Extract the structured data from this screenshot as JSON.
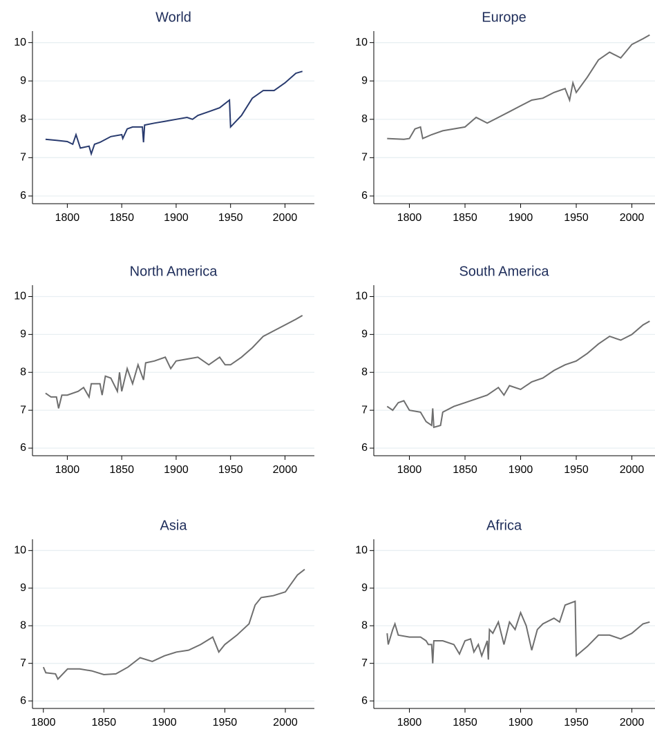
{
  "chart_data": [
    {
      "type": "line",
      "title": "World",
      "color": "#283a6e",
      "grid": true,
      "xlim": [
        1768,
        2027
      ],
      "ylim": [
        5.8,
        10.3
      ],
      "xticks": [
        1800,
        1850,
        1900,
        1950,
        2000
      ],
      "yticks": [
        6,
        7,
        8,
        9,
        10
      ],
      "x": [
        1780,
        1790,
        1800,
        1805,
        1808,
        1812,
        1820,
        1822,
        1825,
        1830,
        1840,
        1850,
        1851,
        1855,
        1860,
        1869,
        1870,
        1871,
        1880,
        1890,
        1900,
        1910,
        1915,
        1920,
        1930,
        1940,
        1949,
        1950,
        1960,
        1970,
        1980,
        1990,
        2000,
        2010,
        2016
      ],
      "values": [
        7.48,
        7.45,
        7.42,
        7.35,
        7.6,
        7.25,
        7.3,
        7.1,
        7.35,
        7.4,
        7.55,
        7.6,
        7.5,
        7.75,
        7.8,
        7.8,
        7.4,
        7.85,
        7.9,
        7.95,
        8.0,
        8.05,
        8.0,
        8.1,
        8.2,
        8.3,
        8.5,
        7.8,
        8.1,
        8.55,
        8.75,
        8.75,
        8.95,
        9.2,
        9.25
      ]
    },
    {
      "type": "line",
      "title": "Europe",
      "color": "#6e6e6e",
      "grid": true,
      "xlim": [
        1768,
        2027
      ],
      "ylim": [
        5.8,
        10.3
      ],
      "xticks": [
        1800,
        1850,
        1900,
        1950,
        2000
      ],
      "yticks": [
        6,
        7,
        8,
        9,
        10
      ],
      "x": [
        1780,
        1795,
        1800,
        1805,
        1810,
        1812,
        1820,
        1830,
        1850,
        1860,
        1870,
        1880,
        1890,
        1900,
        1910,
        1920,
        1930,
        1940,
        1944,
        1947,
        1950,
        1960,
        1970,
        1980,
        1990,
        2000,
        2010,
        2016
      ],
      "values": [
        7.5,
        7.48,
        7.5,
        7.75,
        7.8,
        7.5,
        7.6,
        7.7,
        7.8,
        8.05,
        7.9,
        8.05,
        8.2,
        8.35,
        8.5,
        8.55,
        8.7,
        8.8,
        8.5,
        8.95,
        8.7,
        9.1,
        9.55,
        9.75,
        9.6,
        9.95,
        10.1,
        10.2
      ]
    },
    {
      "type": "line",
      "title": "North America",
      "color": "#6e6e6e",
      "grid": true,
      "xlim": [
        1768,
        2027
      ],
      "ylim": [
        5.8,
        10.3
      ],
      "xticks": [
        1800,
        1850,
        1900,
        1950,
        2000
      ],
      "yticks": [
        6,
        7,
        8,
        9,
        10
      ],
      "x": [
        1780,
        1785,
        1790,
        1792,
        1795,
        1800,
        1810,
        1815,
        1820,
        1822,
        1830,
        1832,
        1835,
        1840,
        1846,
        1848,
        1850,
        1855,
        1860,
        1865,
        1870,
        1872,
        1880,
        1890,
        1895,
        1900,
        1910,
        1920,
        1930,
        1940,
        1945,
        1950,
        1960,
        1970,
        1980,
        1990,
        2000,
        2010,
        2016
      ],
      "values": [
        7.45,
        7.35,
        7.35,
        7.05,
        7.4,
        7.4,
        7.5,
        7.6,
        7.35,
        7.7,
        7.7,
        7.4,
        7.9,
        7.85,
        7.5,
        8.0,
        7.5,
        8.1,
        7.7,
        8.2,
        7.8,
        8.25,
        8.3,
        8.4,
        8.1,
        8.3,
        8.35,
        8.4,
        8.2,
        8.4,
        8.2,
        8.2,
        8.4,
        8.65,
        8.95,
        9.1,
        9.25,
        9.4,
        9.5
      ]
    },
    {
      "type": "line",
      "title": "South America",
      "color": "#6e6e6e",
      "grid": true,
      "xlim": [
        1768,
        2027
      ],
      "ylim": [
        5.8,
        10.3
      ],
      "xticks": [
        1800,
        1850,
        1900,
        1950,
        2000
      ],
      "yticks": [
        6,
        7,
        8,
        9,
        10
      ],
      "x": [
        1780,
        1785,
        1790,
        1795,
        1800,
        1810,
        1815,
        1820,
        1821,
        1822,
        1828,
        1830,
        1840,
        1850,
        1860,
        1870,
        1880,
        1885,
        1890,
        1900,
        1910,
        1920,
        1930,
        1940,
        1950,
        1960,
        1970,
        1980,
        1990,
        2000,
        2010,
        2016
      ],
      "values": [
        7.1,
        7.0,
        7.2,
        7.25,
        7.0,
        6.95,
        6.7,
        6.6,
        7.05,
        6.55,
        6.6,
        6.95,
        7.1,
        7.2,
        7.3,
        7.4,
        7.6,
        7.4,
        7.65,
        7.55,
        7.75,
        7.85,
        8.05,
        8.2,
        8.3,
        8.5,
        8.75,
        8.95,
        8.85,
        9.0,
        9.25,
        9.35
      ]
    },
    {
      "type": "line",
      "title": "Asia",
      "color": "#6e6e6e",
      "grid": true,
      "xlim": [
        1791,
        2024
      ],
      "ylim": [
        5.8,
        10.3
      ],
      "xticks": [
        1800,
        1850,
        1900,
        1950,
        2000
      ],
      "yticks": [
        6,
        7,
        8,
        9,
        10
      ],
      "x": [
        1800,
        1802,
        1810,
        1812,
        1820,
        1830,
        1840,
        1850,
        1860,
        1870,
        1880,
        1890,
        1900,
        1910,
        1920,
        1930,
        1940,
        1945,
        1950,
        1960,
        1970,
        1975,
        1980,
        1990,
        2000,
        2010,
        2016
      ],
      "values": [
        6.9,
        6.75,
        6.72,
        6.58,
        6.85,
        6.85,
        6.8,
        6.7,
        6.72,
        6.9,
        7.15,
        7.05,
        7.2,
        7.3,
        7.35,
        7.5,
        7.7,
        7.3,
        7.5,
        7.75,
        8.05,
        8.55,
        8.75,
        8.8,
        8.9,
        9.35,
        9.5
      ]
    },
    {
      "type": "line",
      "title": "Africa",
      "color": "#6e6e6e",
      "grid": true,
      "xlim": [
        1768,
        2027
      ],
      "ylim": [
        5.8,
        10.3
      ],
      "xticks": [
        1800,
        1850,
        1900,
        1950,
        2000
      ],
      "yticks": [
        6,
        7,
        8,
        9,
        10
      ],
      "x": [
        1780,
        1781,
        1785,
        1787,
        1790,
        1800,
        1810,
        1815,
        1817,
        1820,
        1821,
        1822,
        1830,
        1840,
        1845,
        1850,
        1855,
        1858,
        1862,
        1865,
        1870,
        1871,
        1872,
        1875,
        1880,
        1885,
        1890,
        1895,
        1900,
        1905,
        1910,
        1915,
        1920,
        1930,
        1935,
        1940,
        1949,
        1950,
        1960,
        1970,
        1980,
        1990,
        2000,
        2010,
        2016
      ],
      "values": [
        7.8,
        7.5,
        7.9,
        8.05,
        7.75,
        7.7,
        7.7,
        7.6,
        7.5,
        7.5,
        7.0,
        7.6,
        7.6,
        7.5,
        7.25,
        7.6,
        7.65,
        7.3,
        7.5,
        7.2,
        7.6,
        7.1,
        7.9,
        7.8,
        8.1,
        7.5,
        8.1,
        7.9,
        8.35,
        8.0,
        7.35,
        7.9,
        8.05,
        8.2,
        8.1,
        8.55,
        8.65,
        7.2,
        7.45,
        7.75,
        7.75,
        7.65,
        7.8,
        8.05,
        8.1
      ]
    }
  ]
}
